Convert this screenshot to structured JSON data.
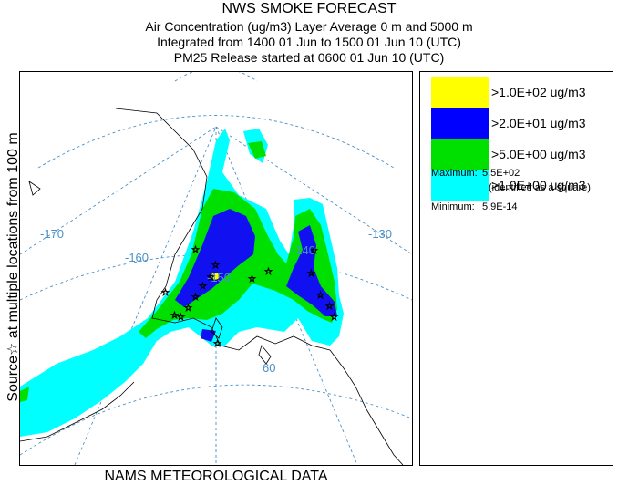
{
  "header": {
    "title": "NWS SMOKE FORECAST",
    "line2": "Air Concentration (ug/m3) Layer Average    0 m and  5000 m",
    "line3": "Integrated from 1400 01 Jun to 1500 01 Jun 10 (UTC)",
    "line4": "PM25 Release started at 0600 01 Jun 10 (UTC)"
  },
  "side_label": "Source☆ at multiple locations    from   100 m",
  "footer": "NAMS METEOROLOGICAL DATA",
  "map": {
    "lon_labels": [
      "-170",
      "-160",
      "-150",
      "-140",
      "-130"
    ],
    "lat_labels": [
      "60"
    ],
    "colors": {
      "ocean": "#ffffff",
      "coast": "#000000",
      "graticule": "#4a90c8"
    }
  },
  "legend": {
    "items": [
      {
        "label": ">1.0E+02 ug/m3",
        "color": "#ffff00"
      },
      {
        "label": ">2.0E+01 ug/m3",
        "color": "#0000ff"
      },
      {
        "label": ">5.0E+00 ug/m3",
        "color": "#00e000"
      },
      {
        "label": ">1.0E+00 ug/m3",
        "color": "#00ffff"
      }
    ],
    "maximum_label": "Maximum:",
    "maximum_value": "5.5E+02",
    "maximum_note": "(identified as a square)",
    "minimum_label": "Minimum:",
    "minimum_value": "5.9E-14"
  }
}
